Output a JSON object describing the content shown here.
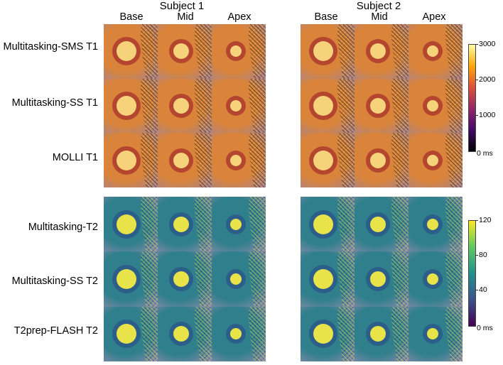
{
  "t1_panel": {
    "subjects": [
      {
        "title": "Subject 1",
        "columns": [
          "Base",
          "Mid",
          "Apex"
        ]
      },
      {
        "title": "Subject 2",
        "columns": [
          "Base",
          "Mid",
          "Apex"
        ]
      }
    ],
    "rows": [
      "Multitasking-SMS T1",
      "Multitasking-SS T1",
      "MOLLI T1"
    ],
    "colorbar": {
      "ticks": [
        "3000",
        "2000",
        "1000",
        "0 ms"
      ],
      "max": 3000,
      "min": 0,
      "colormap": "inferno"
    }
  },
  "t2_panel": {
    "rows": [
      "Multitasking-T2",
      "Multitasking-SS T2",
      "T2prep-FLASH T2"
    ],
    "colorbar": {
      "ticks": [
        "120",
        "80",
        "40",
        "0 ms"
      ],
      "max": 120,
      "min": 0,
      "colormap": "viridis"
    }
  },
  "colors": {
    "t1_background": "#d9843a",
    "t1_blood": "#f6d27a",
    "t1_myocardium": "#b4452f",
    "t2_background": "#2f7f8c",
    "t2_blood": "#e9e34a",
    "t2_myocardium": "#2b5f8a"
  }
}
